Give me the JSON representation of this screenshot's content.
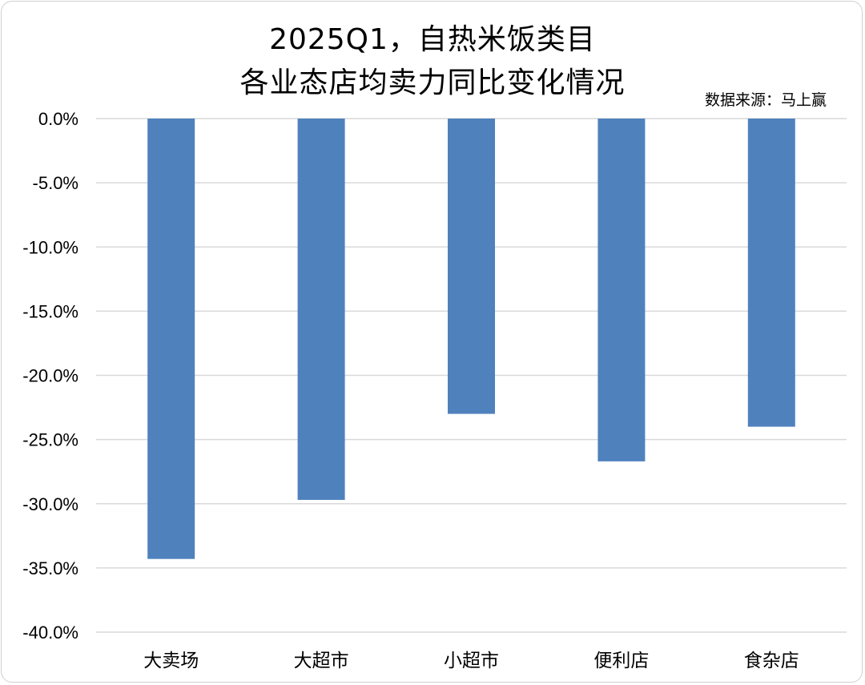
{
  "chart_data": {
    "type": "bar",
    "title_line1": "2025Q1，自热米饭类目",
    "title_line2": "各业态店均卖力同比变化情况",
    "source_note": "数据来源：马上赢",
    "categories": [
      "大卖场",
      "大超市",
      "小超市",
      "便利店",
      "食杂店"
    ],
    "values": [
      -34.3,
      -29.7,
      -23.0,
      -26.7,
      -24.0
    ],
    "unit": "%",
    "ylim": [
      -40,
      0
    ],
    "yticks": [
      0,
      -5,
      -10,
      -15,
      -20,
      -25,
      -30,
      -35,
      -40
    ],
    "ytick_labels": [
      "0.0%",
      "-5.0%",
      "-10.0%",
      "-15.0%",
      "-20.0%",
      "-25.0%",
      "-30.0%",
      "-35.0%",
      "-40.0%"
    ],
    "grid": true,
    "bar_color": "#4f81bd",
    "grid_color": "#d9d9d9"
  }
}
